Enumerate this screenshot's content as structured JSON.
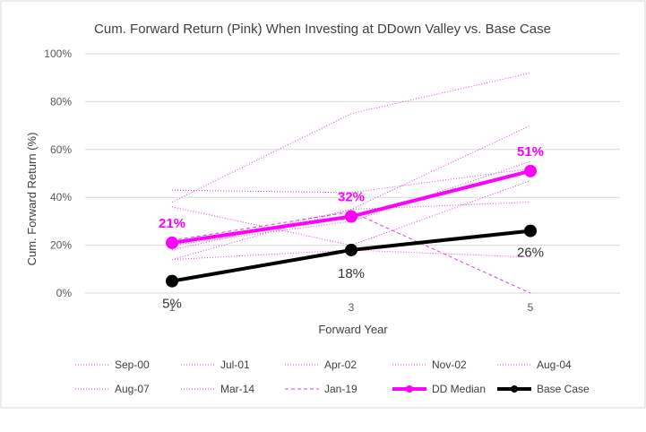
{
  "chart_data": {
    "type": "line",
    "title": "Cum. Forward Return (Pink) When Investing at DDown Valley vs. Base Case",
    "xlabel": "Forward Year",
    "ylabel": "Cum. Forward Return (%)",
    "x": [
      1,
      3,
      5
    ],
    "x_tick_labels": [
      "1",
      "3",
      "5"
    ],
    "ylim": [
      0,
      100
    ],
    "y_ticks": [
      0,
      20,
      40,
      60,
      80,
      100
    ],
    "y_tick_labels": [
      "0%",
      "20%",
      "40%",
      "60%",
      "80%",
      "100%"
    ],
    "grid": "horizontal",
    "legend_position": "bottom",
    "series": [
      {
        "name": "Sep-00",
        "values": [
          38,
          75,
          92
        ],
        "color": "#e040e0",
        "style": "dotted"
      },
      {
        "name": "Jul-01",
        "values": [
          14,
          35,
          70
        ],
        "color": "#e040e0",
        "style": "dotted"
      },
      {
        "name": "Apr-02",
        "values": [
          36,
          20,
          47
        ],
        "color": "#e040e0",
        "style": "dotted"
      },
      {
        "name": "Nov-02",
        "values": [
          43,
          42,
          52
        ],
        "color": "#e040e0",
        "style": "dotted"
      },
      {
        "name": "Aug-04",
        "values": [
          20,
          30,
          55
        ],
        "color": "#e040e0",
        "style": "dotted"
      },
      {
        "name": "Aug-07",
        "values": [
          18,
          35,
          38
        ],
        "color": "#e040e0",
        "style": "dotted"
      },
      {
        "name": "Mar-14",
        "values": [
          14,
          18,
          15
        ],
        "color": "#e040e0",
        "style": "dotted"
      },
      {
        "name": "Jan-19",
        "values": [
          22,
          34,
          0
        ],
        "color": "#e040e0",
        "style": "dashed"
      },
      {
        "name": "DD Median",
        "values": [
          21,
          32,
          51
        ],
        "color": "#ff00ff",
        "style": "bold",
        "labels": [
          "21%",
          "32%",
          "51%"
        ]
      },
      {
        "name": "Base Case",
        "values": [
          5,
          18,
          26
        ],
        "color": "#000000",
        "style": "bold",
        "labels": [
          "5%",
          "18%",
          "26%"
        ]
      }
    ]
  }
}
